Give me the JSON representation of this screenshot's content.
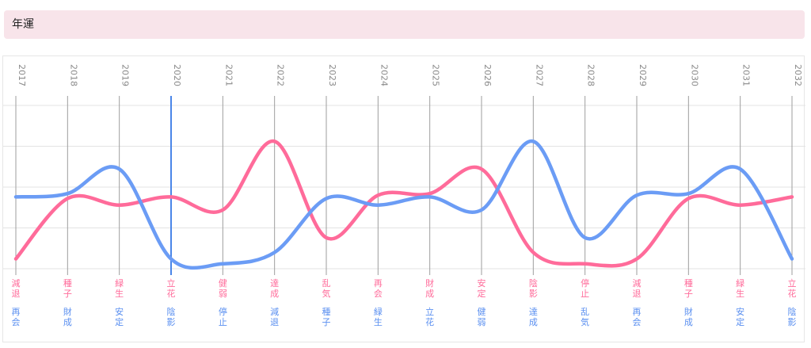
{
  "section": {
    "title": "年運"
  },
  "chart_data": {
    "type": "line",
    "x": [
      "2017",
      "2018",
      "2019",
      "2020",
      "2021",
      "2022",
      "2023",
      "2024",
      "2025",
      "2026",
      "2027",
      "2028",
      "2029",
      "2030",
      "2031",
      "2032"
    ],
    "highlight_year": "2020",
    "ylim": [
      0,
      10
    ],
    "grid": true,
    "series": [
      {
        "color": "#ff6b9a",
        "values": [
          0.6,
          4.3,
          3.9,
          4.4,
          3.6,
          7.8,
          1.9,
          4.5,
          4.6,
          6.1,
          1.0,
          0.3,
          0.6,
          4.3,
          3.9,
          4.4
        ],
        "labels": [
          "減退",
          "種子",
          "緑生",
          "立花",
          "健弱",
          "達成",
          "乱気",
          "再会",
          "財成",
          "安定",
          "陰影",
          "停止",
          "減退",
          "種子",
          "緑生",
          "立花"
        ]
      },
      {
        "color": "#6b9cf5",
        "values": [
          4.4,
          4.6,
          6.1,
          0.6,
          0.3,
          1.0,
          4.3,
          3.9,
          4.4,
          3.6,
          7.8,
          1.9,
          4.5,
          4.6,
          6.1,
          0.6
        ],
        "labels": [
          "再会",
          "財成",
          "安定",
          "陰影",
          "停止",
          "減退",
          "種子",
          "緑生",
          "立花",
          "健弱",
          "達成",
          "乱気",
          "再会",
          "財成",
          "安定",
          "陰影"
        ]
      }
    ]
  }
}
